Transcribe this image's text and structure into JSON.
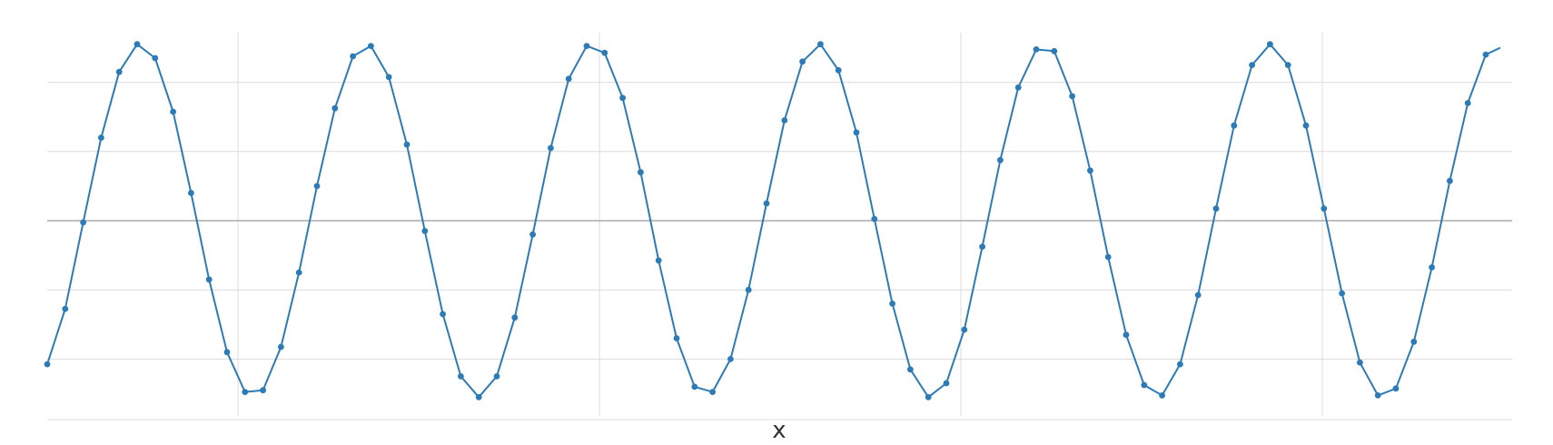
{
  "chart_data": {
    "type": "line",
    "xlabel": "x",
    "ylabel": "",
    "title": "",
    "grid": true,
    "legend": "none",
    "colors": {
      "series": "#2c7bb6",
      "grid": "#dcdcdc",
      "zero_line": "#9a9a9a"
    },
    "series": [
      {
        "values": [
          -0.83,
          -0.51,
          -0.01,
          0.48,
          0.86,
          1.02,
          0.94,
          0.63,
          0.16,
          -0.34,
          -0.76,
          -0.99,
          -0.98,
          -0.73,
          -0.3,
          0.2,
          0.65,
          0.95,
          1.01,
          0.83,
          0.44,
          -0.06,
          -0.54,
          -0.9,
          -1.02,
          -0.9,
          -0.56,
          -0.08,
          0.42,
          0.82,
          1.01,
          0.97,
          0.71,
          0.28,
          -0.23,
          -0.68,
          -0.96,
          -0.99,
          -0.8,
          -0.4,
          0.1,
          0.58,
          0.92,
          1.02,
          0.87,
          0.51,
          0.01,
          -0.48,
          -0.86,
          -1.02,
          -0.94,
          -0.63,
          -0.15,
          0.35,
          0.77,
          0.99,
          0.98,
          0.72,
          0.29,
          -0.21,
          -0.66,
          -0.95,
          -1.01,
          -0.83,
          -0.43,
          0.07,
          0.55,
          0.9,
          1.02,
          0.9,
          0.55,
          0.07,
          -0.42,
          -0.82,
          -1.01,
          -0.97,
          -0.7,
          -0.27,
          0.23,
          0.68,
          0.96
        ]
      }
    ]
  }
}
